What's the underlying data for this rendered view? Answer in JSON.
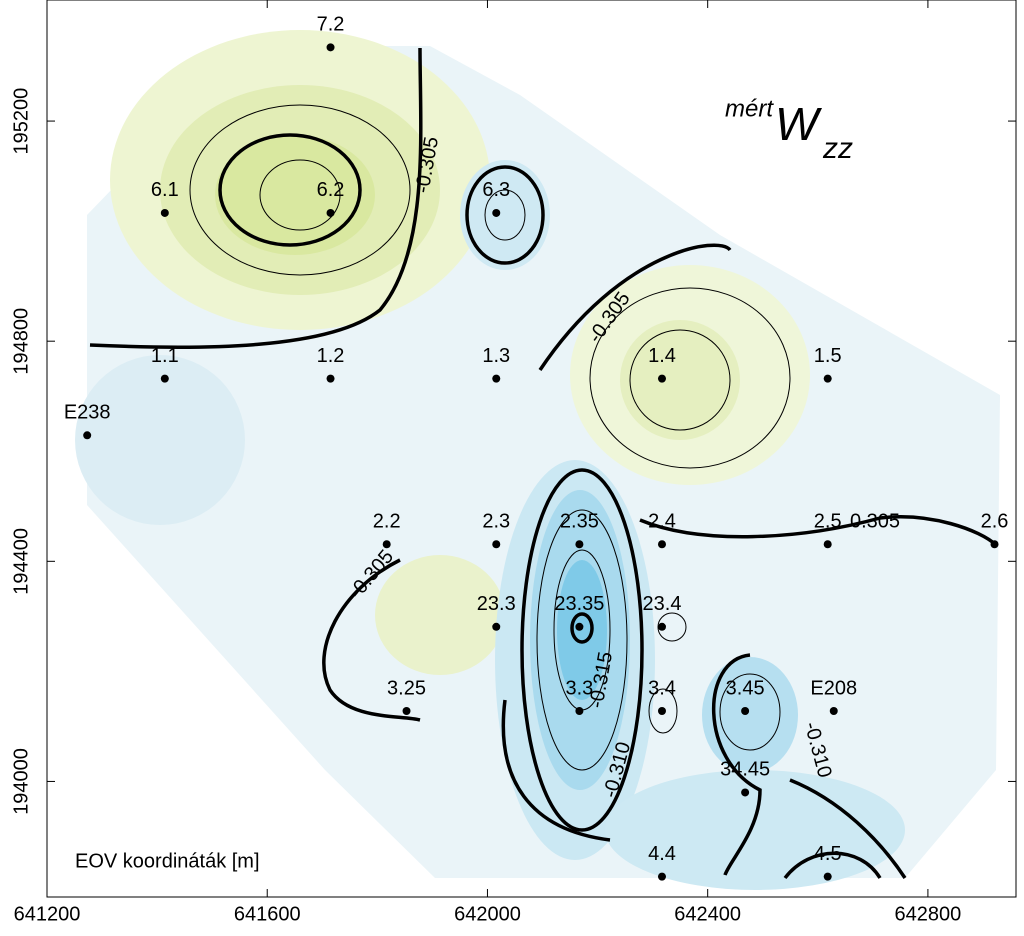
{
  "chart_data": {
    "type": "scatter",
    "title_prefix": "mért",
    "title": "W",
    "title_subscript": "zz",
    "annotation": "EOV koordináták [m]",
    "labels": [
      "7.2",
      "6.1",
      "6.2",
      "6.3",
      "1.1",
      "1.2",
      "1.3",
      "1.4",
      "1.5",
      "E238",
      "2.2",
      "2.3",
      "2.35",
      "2.4",
      "2.5",
      "2.6",
      "23.3",
      "23.35",
      "23.4",
      "3.25",
      "3.3",
      "3.4",
      "3.45",
      "E208",
      "34.45",
      "4.4",
      "4.5"
    ],
    "x": [
      641715,
      641414,
      641715,
      642016,
      641414,
      641715,
      642016,
      642317,
      642618,
      641273,
      641817,
      642016,
      642167,
      642317,
      642618,
      642921,
      642016,
      642167,
      642317,
      641853,
      642167,
      642317,
      642468,
      642629,
      642468,
      642317,
      642618
    ],
    "y": [
      195334,
      195033,
      195033,
      195033,
      194732,
      194732,
      194732,
      194732,
      194732,
      194629,
      194431,
      194431,
      194431,
      194431,
      194431,
      194431,
      194281,
      194281,
      194281,
      194128,
      194128,
      194128,
      194128,
      194128,
      193980,
      193827,
      193827
    ],
    "contour_labels": [
      "-0.305",
      "-0.305",
      "0.305",
      "-0.305",
      "-0.315",
      "-0.310",
      "-0.310"
    ],
    "color": "#000000",
    "xlim": [
      641200,
      642960
    ],
    "ylim": [
      193790,
      195420
    ],
    "xticks": [
      641200,
      641600,
      642000,
      642400,
      642800
    ],
    "yticks": [
      194000,
      194400,
      194800,
      195200
    ]
  }
}
